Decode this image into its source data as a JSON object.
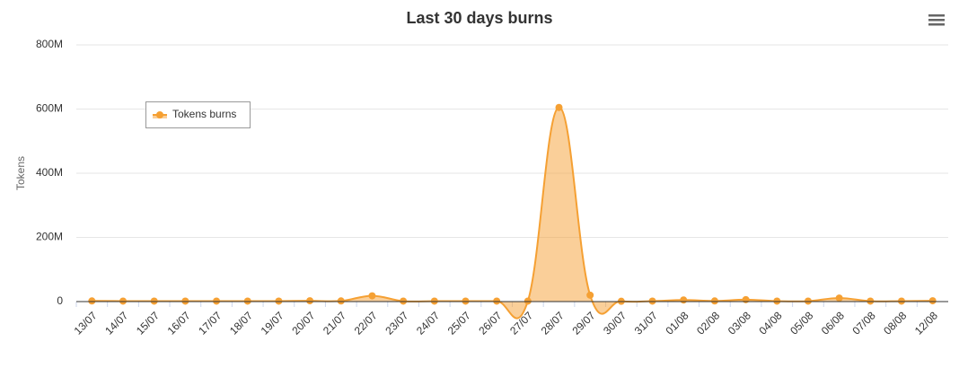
{
  "chart_data": {
    "type": "area",
    "title": "Last 30 days burns",
    "y_label": "Tokens",
    "categories": [
      "13/07",
      "14/07",
      "15/07",
      "16/07",
      "17/07",
      "18/07",
      "19/07",
      "20/07",
      "21/07",
      "22/07",
      "23/07",
      "24/07",
      "25/07",
      "26/07",
      "27/07",
      "28/07",
      "29/07",
      "30/07",
      "31/07",
      "01/08",
      "02/08",
      "03/08",
      "04/08",
      "05/08",
      "06/08",
      "07/08",
      "08/08",
      "12/08"
    ],
    "series": [
      {
        "name": "Tokens burns",
        "color": "#f5a033",
        "values": [
          2000000,
          1500000,
          1500000,
          1500000,
          1500000,
          1500000,
          1500000,
          2500000,
          2000000,
          18000000,
          1500000,
          1500000,
          1500000,
          1500000,
          1500000,
          605000000,
          20000000,
          1000000,
          1500000,
          5000000,
          2000000,
          6000000,
          1500000,
          1500000,
          11000000,
          1500000,
          1500000,
          2500000
        ]
      }
    ],
    "ylim": [
      0,
      800000000
    ],
    "yticks": [
      0,
      {
        "value": 200000000,
        "label": "200M"
      },
      {
        "value": 400000000,
        "label": "400M"
      },
      {
        "value": 600000000,
        "label": "600M"
      },
      {
        "value": 800000000,
        "label": "800M"
      }
    ],
    "grid": true,
    "legend": "top-left"
  }
}
